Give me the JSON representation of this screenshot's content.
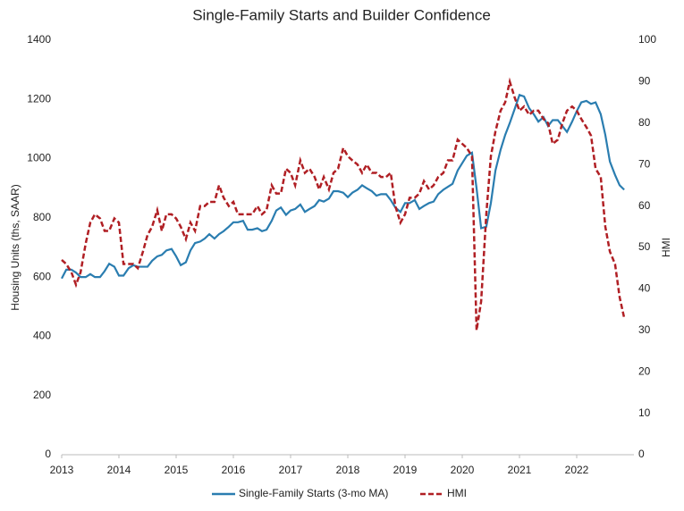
{
  "chart_data": {
    "type": "line",
    "title": "Single-Family Starts and Builder Confidence",
    "y_label": "Housing Units (ths, SAAR)",
    "y2_label": "HMI",
    "xlim": [
      2013,
      2023
    ],
    "xticks": [
      2013,
      2014,
      2015,
      2016,
      2017,
      2018,
      2019,
      2020,
      2021,
      2022
    ],
    "ylim": [
      0,
      1400
    ],
    "yticks": [
      0,
      200,
      400,
      600,
      800,
      1000,
      1200,
      1400
    ],
    "y2lim": [
      0,
      100
    ],
    "y2ticks": [
      0,
      10,
      20,
      30,
      40,
      50,
      60,
      70,
      80,
      90,
      100
    ],
    "legend": "bottom",
    "grid": false,
    "x": [
      2013,
      2013.08,
      2013.17,
      2013.25,
      2013.33,
      2013.42,
      2013.5,
      2013.58,
      2013.67,
      2013.75,
      2013.83,
      2013.92,
      2014,
      2014.08,
      2014.17,
      2014.25,
      2014.33,
      2014.42,
      2014.5,
      2014.58,
      2014.67,
      2014.75,
      2014.83,
      2014.92,
      2015,
      2015.08,
      2015.17,
      2015.25,
      2015.33,
      2015.42,
      2015.5,
      2015.58,
      2015.67,
      2015.75,
      2015.83,
      2015.92,
      2016,
      2016.08,
      2016.17,
      2016.25,
      2016.33,
      2016.42,
      2016.5,
      2016.58,
      2016.67,
      2016.75,
      2016.83,
      2016.92,
      2017,
      2017.08,
      2017.17,
      2017.25,
      2017.33,
      2017.42,
      2017.5,
      2017.58,
      2017.67,
      2017.75,
      2017.83,
      2017.92,
      2018,
      2018.08,
      2018.17,
      2018.25,
      2018.33,
      2018.42,
      2018.5,
      2018.58,
      2018.67,
      2018.75,
      2018.83,
      2018.92,
      2019,
      2019.08,
      2019.17,
      2019.25,
      2019.33,
      2019.42,
      2019.5,
      2019.58,
      2019.67,
      2019.75,
      2019.83,
      2019.92,
      2020,
      2020.08,
      2020.17,
      2020.25,
      2020.33,
      2020.42,
      2020.5,
      2020.58,
      2020.67,
      2020.75,
      2020.83,
      2020.92,
      2021,
      2021.08,
      2021.17,
      2021.25,
      2021.33,
      2021.42,
      2021.5,
      2021.58,
      2021.67,
      2021.75,
      2021.83,
      2021.92,
      2022,
      2022.08,
      2022.17,
      2022.25,
      2022.33,
      2022.42,
      2022.5,
      2022.58,
      2022.67,
      2022.75,
      2022.83
    ],
    "series": [
      {
        "name": "Single-Family Starts (3-mo MA)",
        "color": "#2a7db0",
        "axis": "y",
        "values": [
          595,
          625,
          625,
          615,
          600,
          600,
          610,
          600,
          600,
          620,
          645,
          635,
          605,
          605,
          630,
          640,
          635,
          635,
          635,
          655,
          670,
          675,
          690,
          695,
          670,
          640,
          650,
          690,
          715,
          720,
          730,
          745,
          730,
          745,
          755,
          770,
          785,
          785,
          790,
          760,
          760,
          765,
          755,
          760,
          790,
          825,
          835,
          810,
          825,
          830,
          845,
          820,
          830,
          840,
          860,
          855,
          865,
          890,
          890,
          885,
          870,
          885,
          895,
          910,
          900,
          890,
          875,
          880,
          880,
          860,
          835,
          820,
          850,
          850,
          860,
          830,
          840,
          850,
          855,
          880,
          895,
          905,
          915,
          960,
          985,
          1010,
          1020,
          900,
          765,
          770,
          850,
          960,
          1030,
          1080,
          1120,
          1170,
          1215,
          1210,
          1170,
          1150,
          1125,
          1140,
          1110,
          1130,
          1130,
          1110,
          1090,
          1125,
          1160,
          1190,
          1195,
          1185,
          1190,
          1150,
          1080,
          990,
          945,
          910,
          895
        ]
      },
      {
        "name": "HMI",
        "color": "#b01f24",
        "axis": "y2",
        "dashed": true,
        "values": [
          47,
          46,
          44,
          41,
          44,
          51,
          56,
          58,
          57,
          54,
          54,
          57,
          56,
          46,
          46,
          46,
          45,
          49,
          53,
          55,
          59,
          54,
          58,
          58,
          57,
          55,
          52,
          56,
          54,
          60,
          60,
          61,
          61,
          65,
          62,
          60,
          61,
          58,
          58,
          58,
          58,
          60,
          58,
          59,
          65,
          63,
          63,
          69,
          68,
          65,
          71,
          68,
          69,
          67,
          64,
          67,
          64,
          68,
          69,
          74,
          72,
          71,
          70,
          68,
          70,
          68,
          68,
          67,
          67,
          68,
          60,
          56,
          58,
          62,
          62,
          63,
          66,
          64,
          65,
          67,
          68,
          71,
          71,
          76,
          75,
          74,
          72,
          30,
          37,
          58,
          72,
          78,
          83,
          85,
          90,
          86,
          83,
          84,
          82,
          83,
          83,
          81,
          80,
          75,
          76,
          80,
          83,
          84,
          83,
          81,
          79,
          77,
          69,
          67,
          55,
          49,
          46,
          38,
          33
        ]
      }
    ]
  }
}
